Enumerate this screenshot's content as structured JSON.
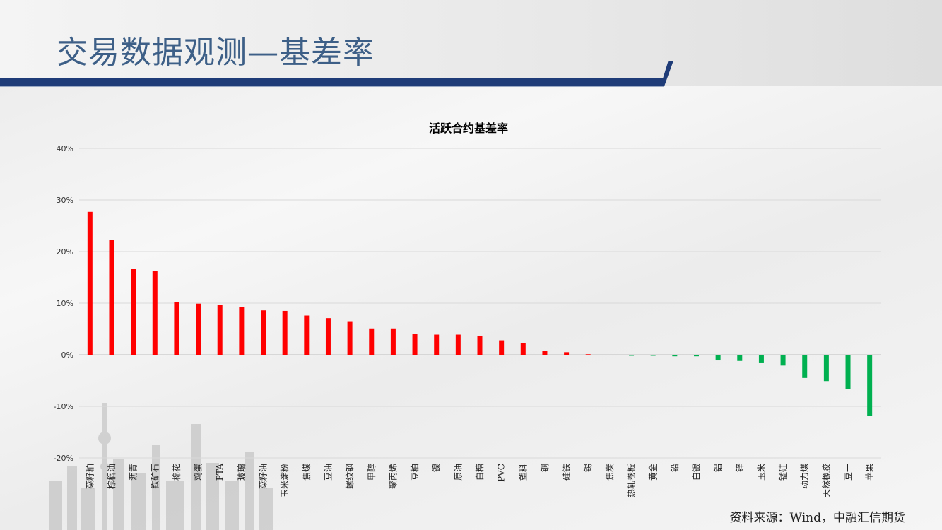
{
  "slide": {
    "title": "交易数据观测—基差率",
    "source": "资料来源：Wind，中融汇信期货"
  },
  "colors": {
    "positive": "#ff0000",
    "negative": "#00b050",
    "title_blue": "#3d5f87",
    "bar_blue": "#1f3c78"
  },
  "chart_data": {
    "type": "bar",
    "title": "活跃合约基差率",
    "xlabel": "",
    "ylabel": "",
    "ylim": [
      -20,
      40
    ],
    "yticks": [
      "40%",
      "30%",
      "20%",
      "10%",
      "0%",
      "-10%",
      "-20%"
    ],
    "ytick_values": [
      40,
      30,
      20,
      10,
      0,
      -10,
      -20
    ],
    "grid": true,
    "categories": [
      "菜籽粕",
      "棕榈油",
      "沥青",
      "铁矿石",
      "棉花",
      "鸡蛋",
      "PTA",
      "玻璃",
      "菜籽油",
      "玉米淀粉",
      "焦煤",
      "豆油",
      "螺纹钢",
      "甲醇",
      "聚丙烯",
      "豆粕",
      "镍",
      "原油",
      "白糖",
      "PVC",
      "塑料",
      "铜",
      "硅铁",
      "锡",
      "焦炭",
      "热轧卷板",
      "黄金",
      "铅",
      "白银",
      "铝",
      "锌",
      "玉米",
      "锰硅",
      "动力煤",
      "天然橡胶",
      "豆一",
      "苹果"
    ],
    "values": [
      27.7,
      22.3,
      16.6,
      16.2,
      10.2,
      9.9,
      9.7,
      9.2,
      8.6,
      8.5,
      7.6,
      7.1,
      6.5,
      5.1,
      5.1,
      4.0,
      3.9,
      3.9,
      3.7,
      2.8,
      2.2,
      0.7,
      0.5,
      0.1,
      0.0,
      -0.2,
      -0.2,
      -0.3,
      -0.3,
      -1.1,
      -1.2,
      -1.5,
      -2.1,
      -4.5,
      -5.1,
      -6.7,
      -11.9
    ]
  }
}
